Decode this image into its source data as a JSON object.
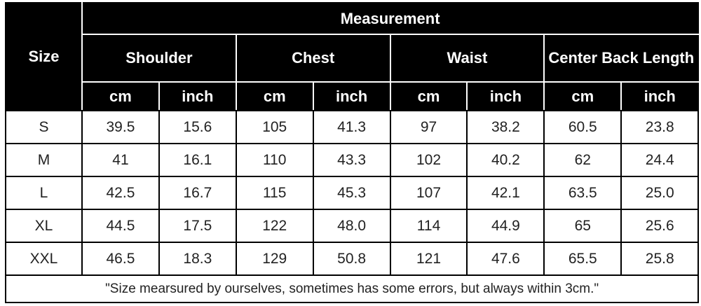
{
  "header": {
    "size_label": "Size",
    "measurement_label": "Measurement",
    "categories": [
      "Shoulder",
      "Chest",
      "Waist",
      "Center Back Length"
    ],
    "units": [
      "cm",
      "inch",
      "cm",
      "inch",
      "cm",
      "inch",
      "cm",
      "inch"
    ]
  },
  "rows": [
    {
      "size": "S",
      "values": [
        "39.5",
        "15.6",
        "105",
        "41.3",
        "97",
        "38.2",
        "60.5",
        "23.8"
      ]
    },
    {
      "size": "M",
      "values": [
        "41",
        "16.1",
        "110",
        "43.3",
        "102",
        "40.2",
        "62",
        "24.4"
      ]
    },
    {
      "size": "L",
      "values": [
        "42.5",
        "16.7",
        "115",
        "45.3",
        "107",
        "42.1",
        "63.5",
        "25.0"
      ]
    },
    {
      "size": "XL",
      "values": [
        "44.5",
        "17.5",
        "122",
        "48.0",
        "114",
        "44.9",
        "65",
        "25.6"
      ]
    },
    {
      "size": "XXL",
      "values": [
        "46.5",
        "18.3",
        "129",
        "50.8",
        "121",
        "47.6",
        "65.5",
        "25.8"
      ]
    }
  ],
  "note": "\"Size mearsured by ourselves, sometimes has some errors, but always within 3cm.\""
}
